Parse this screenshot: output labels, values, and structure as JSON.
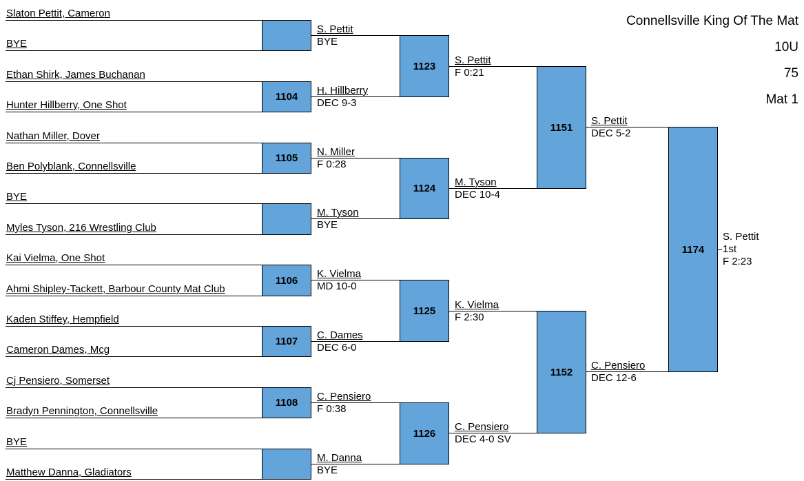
{
  "header": {
    "title": "Connellsville King Of The Mat",
    "division": "10U",
    "weight": "75",
    "mat": "Mat 1"
  },
  "colors": {
    "box": "#63a5db",
    "line": "#000000"
  },
  "entries": [
    "Slaton Pettit, Cameron",
    "BYE",
    "Ethan Shirk, James Buchanan",
    "Hunter Hillberry, One Shot",
    "Nathan Miller, Dover",
    "Ben Polyblank, Connellsville",
    "BYE",
    "Myles Tyson, 216 Wrestling Club",
    "Kai Vielma, One Shot",
    "Ahmi Shipley-Tackett, Barbour County Mat Club",
    "Kaden Stiffey, Hempfield",
    "Cameron Dames, Mcg",
    "Cj Pensiero, Somerset",
    "Bradyn Pennington, Connellsville",
    "BYE",
    "Matthew Danna, Gladiators"
  ],
  "round1": [
    {
      "bout": "",
      "winner": "S. Pettit",
      "result": "BYE"
    },
    {
      "bout": "1104",
      "winner": "H. Hillberry",
      "result": "DEC 9-3"
    },
    {
      "bout": "1105",
      "winner": "N. Miller",
      "result": "F 0:28"
    },
    {
      "bout": "",
      "winner": "M. Tyson",
      "result": "BYE"
    },
    {
      "bout": "1106",
      "winner": "K. Vielma",
      "result": "MD 10-0"
    },
    {
      "bout": "1107",
      "winner": "C. Dames",
      "result": "DEC 6-0"
    },
    {
      "bout": "1108",
      "winner": "C. Pensiero",
      "result": "F 0:38"
    },
    {
      "bout": "",
      "winner": "M. Danna",
      "result": "BYE"
    }
  ],
  "round2": [
    {
      "bout": "1123",
      "winner": "S. Pettit",
      "result": "F 0:21"
    },
    {
      "bout": "1124",
      "winner": "M. Tyson",
      "result": "DEC 10-4"
    },
    {
      "bout": "1125",
      "winner": "K. Vielma",
      "result": "F 2:30"
    },
    {
      "bout": "1126",
      "winner": "C. Pensiero",
      "result": "DEC 4-0 SV"
    }
  ],
  "round3": [
    {
      "bout": "1151",
      "winner": "S. Pettit",
      "result": "DEC 5-2"
    },
    {
      "bout": "1152",
      "winner": "C. Pensiero",
      "result": "DEC 12-6"
    }
  ],
  "final": {
    "bout": "1174",
    "winner": "S. Pettit",
    "place": "1st",
    "result": "F 2:23"
  }
}
